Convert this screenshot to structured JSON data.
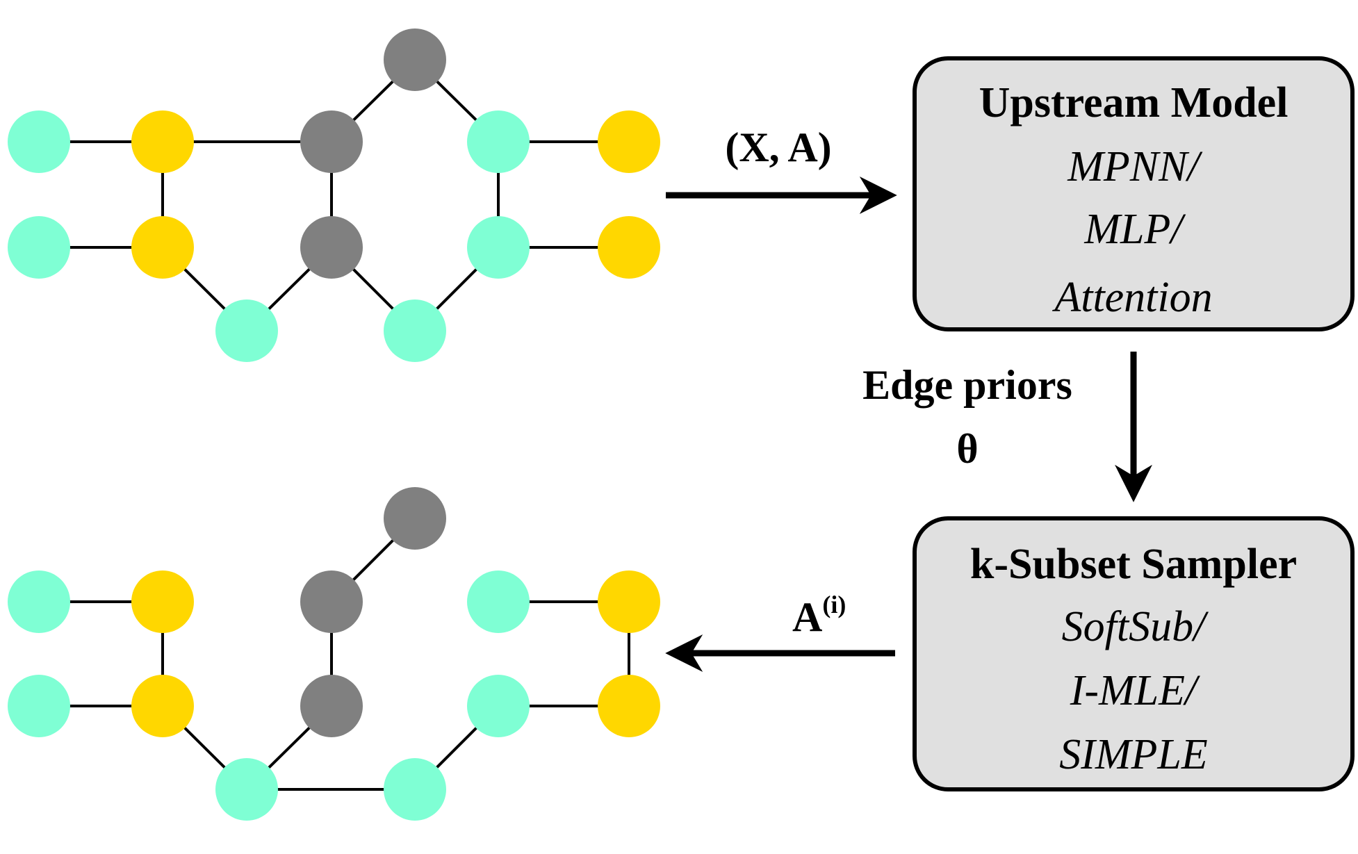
{
  "colors": {
    "teal": "#7FFFD4",
    "gold": "#FFD700",
    "gray": "#808080",
    "box_fill": "#E0E0E0",
    "stroke": "#000000"
  },
  "input_label": "(X, A)",
  "output_label": {
    "base": "A",
    "superscript": "(i)"
  },
  "priors_label": {
    "line1": "Edge priors",
    "line2": "θ"
  },
  "upstream_box": {
    "title": "Upstream Model",
    "options": [
      "MPNN/",
      "MLP/",
      "Attention"
    ]
  },
  "sampler_box": {
    "title": "k-Subset Sampler",
    "options": [
      "SoftSub/",
      "I-MLE/",
      "SIMPLE"
    ]
  },
  "top_graph": {
    "nodes": [
      {
        "id": "n1",
        "color": "teal"
      },
      {
        "id": "n2",
        "color": "gold"
      },
      {
        "id": "n3",
        "color": "gray"
      },
      {
        "id": "n4",
        "color": "gray"
      },
      {
        "id": "n5",
        "color": "teal"
      },
      {
        "id": "n6",
        "color": "gold"
      },
      {
        "id": "n7",
        "color": "teal"
      },
      {
        "id": "n8",
        "color": "gold"
      },
      {
        "id": "n9",
        "color": "gray"
      },
      {
        "id": "n10",
        "color": "teal"
      },
      {
        "id": "n11",
        "color": "gold"
      },
      {
        "id": "n12",
        "color": "teal"
      },
      {
        "id": "n13",
        "color": "teal"
      }
    ],
    "edges": [
      [
        "n1",
        "n2"
      ],
      [
        "n2",
        "n3"
      ],
      [
        "n3",
        "n4"
      ],
      [
        "n4",
        "n5"
      ],
      [
        "n5",
        "n6"
      ],
      [
        "n2",
        "n8"
      ],
      [
        "n3",
        "n9"
      ],
      [
        "n5",
        "n10"
      ],
      [
        "n7",
        "n8"
      ],
      [
        "n10",
        "n11"
      ],
      [
        "n8",
        "n12"
      ],
      [
        "n12",
        "n9"
      ],
      [
        "n9",
        "n13"
      ],
      [
        "n13",
        "n10"
      ]
    ]
  },
  "bottom_graph": {
    "nodes": [
      {
        "id": "m1",
        "color": "teal"
      },
      {
        "id": "m2",
        "color": "gold"
      },
      {
        "id": "m3",
        "color": "gray"
      },
      {
        "id": "m4",
        "color": "gray"
      },
      {
        "id": "m5",
        "color": "teal"
      },
      {
        "id": "m6",
        "color": "gold"
      },
      {
        "id": "m7",
        "color": "teal"
      },
      {
        "id": "m8",
        "color": "gold"
      },
      {
        "id": "m9",
        "color": "gray"
      },
      {
        "id": "m10",
        "color": "teal"
      },
      {
        "id": "m11",
        "color": "gold"
      },
      {
        "id": "m12",
        "color": "teal"
      },
      {
        "id": "m13",
        "color": "teal"
      }
    ],
    "edges": [
      [
        "m1",
        "m2"
      ],
      [
        "m3",
        "m4"
      ],
      [
        "m5",
        "m6"
      ],
      [
        "m2",
        "m8"
      ],
      [
        "m3",
        "m9"
      ],
      [
        "m6",
        "m11"
      ],
      [
        "m7",
        "m8"
      ],
      [
        "m10",
        "m11"
      ],
      [
        "m8",
        "m12"
      ],
      [
        "m12",
        "m13"
      ],
      [
        "m13",
        "m10"
      ],
      [
        "m12",
        "m9"
      ]
    ]
  }
}
